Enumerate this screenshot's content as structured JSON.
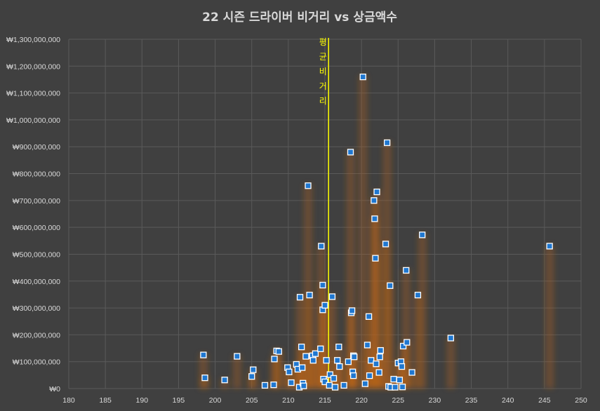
{
  "chart_data": {
    "type": "scatter",
    "title": "22 시즌 드라이버 비거리 vs 상금액수",
    "xlabel": "",
    "ylabel": "",
    "xlim": [
      180,
      250
    ],
    "ylim": [
      0,
      1300000000
    ],
    "x_ticks": [
      "180",
      "185",
      "190",
      "195",
      "200",
      "205",
      "210",
      "215",
      "220",
      "225",
      "230",
      "235",
      "240",
      "245",
      "250"
    ],
    "y_ticks": [
      "₩0",
      "₩100,000,000",
      "₩200,000,000",
      "₩300,000,000",
      "₩400,000,000",
      "₩500,000,000",
      "₩600,000,000",
      "₩700,000,000",
      "₩800,000,000",
      "₩900,000,000",
      "₩1,000,000,000",
      "₩1,100,000,000",
      "₩1,200,000,000",
      "₩1,300,000,000"
    ],
    "grid": true,
    "annotation": {
      "label": "평균비거리",
      "x": 215.5
    },
    "colors": {
      "background": "#404040",
      "marker_fill": "#1f77d0",
      "marker_edge": "#ffffff",
      "glow": "#b8651a",
      "average_line": "#ffff00",
      "gridline": "#5a5a5a",
      "text": "#d9d9d9"
    },
    "series": [
      {
        "x": [
          198.4,
          198.6,
          201.3,
          203.0,
          205.2,
          205.0,
          206.8,
          208.1,
          208.0,
          208.4,
          208.7,
          209.9,
          210.1,
          210.4,
          211.1,
          211.3,
          211.5,
          211.6,
          211.8,
          211.9,
          212.0,
          212.1,
          212.4,
          212.7,
          212.9,
          213.3,
          213.4,
          213.7,
          214.4,
          214.5,
          214.7,
          214.7,
          214.8,
          215.0,
          215.0,
          215.2,
          215.6,
          215.7,
          216.0,
          216.2,
          216.4,
          216.7,
          216.9,
          217.0,
          217.6,
          218.2,
          218.5,
          218.6,
          218.7,
          218.8,
          218.9,
          218.9,
          219.0,
          220.2,
          220.5,
          220.8,
          221.0,
          221.1,
          221.3,
          221.7,
          221.8,
          221.9,
          222.0,
          222.1,
          222.4,
          222.5,
          222.6,
          223.3,
          223.5,
          223.7,
          223.9,
          224.0,
          224.4,
          224.6,
          225.0,
          225.2,
          225.4,
          225.5,
          225.6,
          225.7,
          226.1,
          226.2,
          226.9,
          227.7,
          228.3,
          232.2,
          245.7
        ],
        "y": [
          125000000,
          40000000,
          32000000,
          120000000,
          70000000,
          45000000,
          12000000,
          110000000,
          14000000,
          140000000,
          138000000,
          78000000,
          62000000,
          22000000,
          90000000,
          72000000,
          5000000,
          340000000,
          155000000,
          78000000,
          20000000,
          10000000,
          120000000,
          755000000,
          348000000,
          122000000,
          105000000,
          130000000,
          148000000,
          530000000,
          385000000,
          293000000,
          35000000,
          25000000,
          310000000,
          105000000,
          12000000,
          52000000,
          342000000,
          38000000,
          5000000,
          105000000,
          155000000,
          82000000,
          12000000,
          100000000,
          880000000,
          282000000,
          290000000,
          62000000,
          48000000,
          122000000,
          118000000,
          1160000000,
          18000000,
          162000000,
          268000000,
          48000000,
          105000000,
          700000000,
          632000000,
          485000000,
          92000000,
          732000000,
          60000000,
          118000000,
          142000000,
          538000000,
          915000000,
          8000000,
          383000000,
          5000000,
          35000000,
          5000000,
          95000000,
          32000000,
          100000000,
          82000000,
          6000000,
          158000000,
          440000000,
          172000000,
          60000000,
          348000000,
          572000000,
          188000000,
          530000000
        ]
      }
    ]
  }
}
